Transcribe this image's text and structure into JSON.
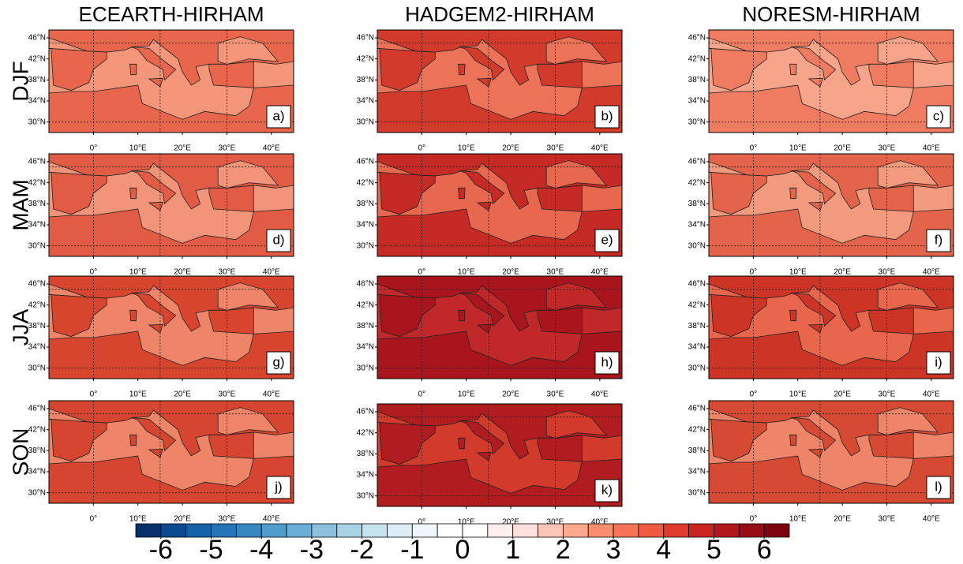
{
  "columns": [
    "ECEARTH-HIRHAM",
    "HADGEM2-HIRHAM",
    "NORESM-HIRHAM"
  ],
  "rows": [
    "DJF",
    "MAM",
    "JJA",
    "SON"
  ],
  "lon_lim": [
    -10,
    45
  ],
  "lat_lim": [
    28,
    47.5
  ],
  "lon_ticks": [
    {
      "value": 0,
      "label": "0°"
    },
    {
      "value": 10,
      "label": "10°E"
    },
    {
      "value": 20,
      "label": "20°E"
    },
    {
      "value": 30,
      "label": "30°E"
    },
    {
      "value": 40,
      "label": "40°E"
    }
  ],
  "lat_ticks": [
    {
      "value": 46,
      "label": "46°N"
    },
    {
      "value": 42,
      "label": "42°N"
    },
    {
      "value": 38,
      "label": "38°N"
    },
    {
      "value": 34,
      "label": "34°N"
    },
    {
      "value": 30,
      "label": "30°N"
    }
  ],
  "grid_lon": [
    0,
    15,
    30
  ],
  "grid_lat": [
    30,
    45
  ],
  "panels": [
    {
      "label": "a)",
      "sea_color": "#f4967a",
      "land_color": "#e8664c"
    },
    {
      "label": "b)",
      "sea_color": "#ec7258",
      "land_color": "#d23a2c"
    },
    {
      "label": "c)",
      "sea_color": "#f6a58b",
      "land_color": "#ef7c60"
    },
    {
      "label": "d)",
      "sea_color": "#f29479",
      "land_color": "#e25b45"
    },
    {
      "label": "e)",
      "sea_color": "#e8674f",
      "land_color": "#c62a24"
    },
    {
      "label": "f)",
      "sea_color": "#f29a7e",
      "land_color": "#e4644b"
    },
    {
      "label": "g)",
      "sea_color": "#ee8468",
      "land_color": "#d8452f"
    },
    {
      "label": "h)",
      "sea_color": "#c0282a",
      "land_color": "#a8151c"
    },
    {
      "label": "i)",
      "sea_color": "#e8664c",
      "land_color": "#cc3526"
    },
    {
      "label": "j)",
      "sea_color": "#ee8468",
      "land_color": "#d64530"
    },
    {
      "label": "k)",
      "sea_color": "#d23a2c",
      "land_color": "#b01c20"
    },
    {
      "label": "l)",
      "sea_color": "#ee8468",
      "land_color": "#d64a34"
    }
  ],
  "colorbar": {
    "lim": [
      -6.5,
      6.5
    ],
    "ticks": [
      -6,
      -5,
      -4,
      -3,
      -2,
      -1,
      0,
      1,
      2,
      3,
      4,
      5,
      6
    ],
    "colors": [
      "#08306b",
      "#0b4a8f",
      "#1561a8",
      "#2474b7",
      "#3787c0",
      "#4f9bcb",
      "#6aaed6",
      "#8cc0dd",
      "#a8d2e6",
      "#c6e3ef",
      "#dcedf6",
      "#eef6fb",
      "#ffffff",
      "#ffffff",
      "#fff0f0",
      "#fde0dc",
      "#fcc5b7",
      "#fca98f",
      "#fb8d6f",
      "#f77456",
      "#f05a40",
      "#e03b2d",
      "#cb2522",
      "#b3161c",
      "#960d16",
      "#7a0510"
    ]
  }
}
